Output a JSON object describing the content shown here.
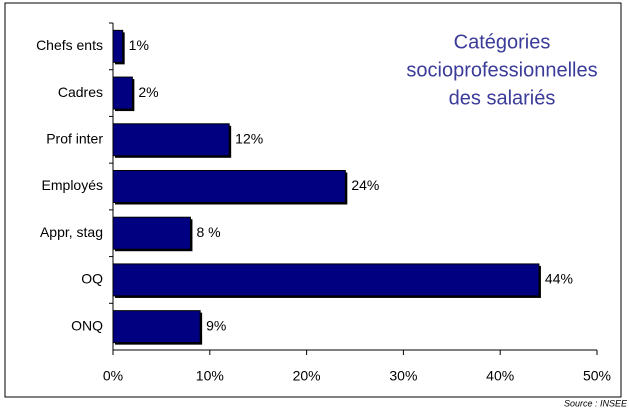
{
  "chart_data": {
    "type": "hbar",
    "title": [
      "Catégories",
      "socioprofessionnelles",
      "des salariés"
    ],
    "source": "Source : INSEE",
    "categories": [
      "Chefs ents",
      "Cadres",
      "Prof inter",
      "Employés",
      "Appr, stag",
      "OQ",
      "ONQ"
    ],
    "values": [
      1,
      2,
      12,
      24,
      8,
      44,
      9
    ],
    "value_labels": [
      "1%",
      "2%",
      "12%",
      "24%",
      "8 %",
      "44%",
      "9%"
    ],
    "color": "#000080",
    "xlim": [
      0,
      50
    ],
    "xticks": [
      {
        "value": 0,
        "label": "0%"
      },
      {
        "value": 10,
        "label": "10%"
      },
      {
        "value": 20,
        "label": "20%"
      },
      {
        "value": 30,
        "label": "30%"
      },
      {
        "value": 40,
        "label": "40%"
      },
      {
        "value": 50,
        "label": "50%"
      }
    ]
  }
}
